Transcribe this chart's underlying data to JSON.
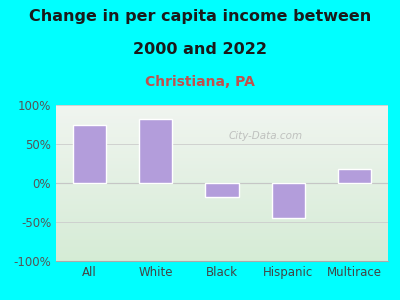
{
  "title_line1": "Change in per capita income between",
  "title_line2": "2000 and 2022",
  "subtitle": "Christiana, PA",
  "categories": [
    "All",
    "White",
    "Black",
    "Hispanic",
    "Multirace"
  ],
  "values": [
    75,
    82,
    -18,
    -45,
    18
  ],
  "bar_color": "#b39ddb",
  "bar_edge_color": "#ffffff",
  "background_color": "#00ffff",
  "plot_bg_color": "#eaf5e9",
  "title_color": "#1a1a1a",
  "subtitle_color": "#c0504d",
  "axis_label_color": "#444444",
  "tick_color": "#555555",
  "ylim": [
    -100,
    100
  ],
  "yticks": [
    -100,
    -50,
    0,
    50,
    100
  ],
  "watermark": "City-Data.com",
  "title_fontsize": 11.5,
  "subtitle_fontsize": 10,
  "tick_fontsize": 8.5,
  "grid_color": "#cccccc",
  "spine_color": "#aaaaaa"
}
